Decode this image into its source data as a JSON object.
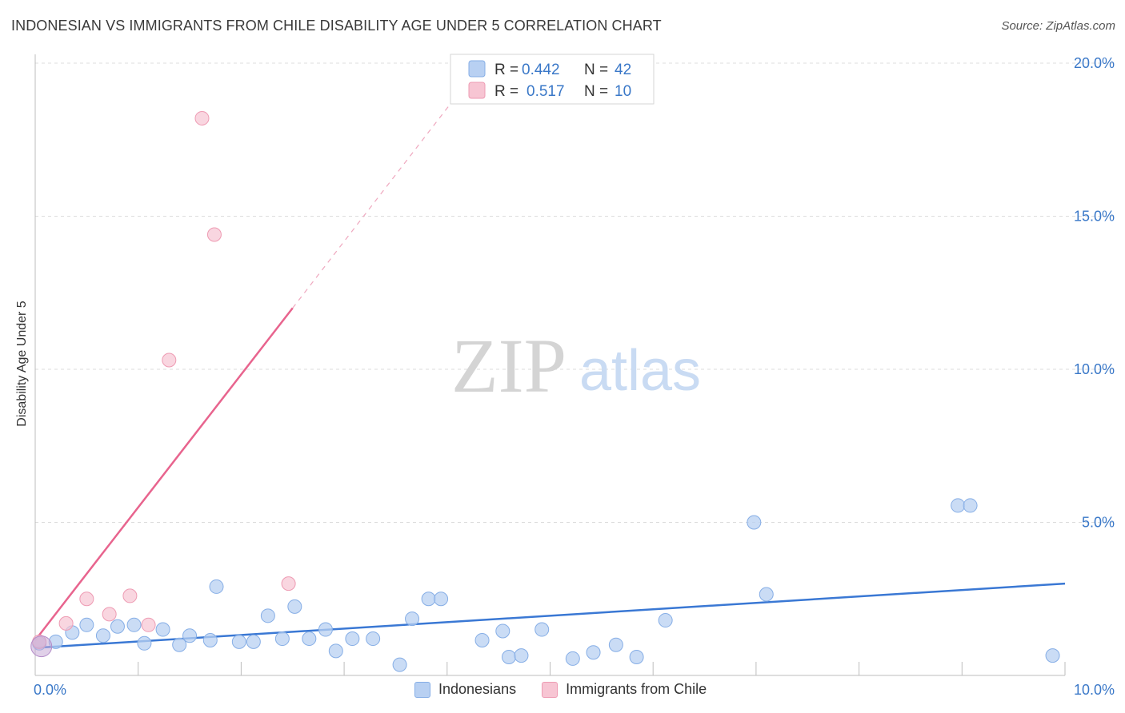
{
  "header": {
    "title": "INDONESIAN VS IMMIGRANTS FROM CHILE DISABILITY AGE UNDER 5 CORRELATION CHART",
    "source": "Source: ZipAtlas.com"
  },
  "watermark": {
    "zip": "ZIP",
    "atlas": "atlas"
  },
  "colors": {
    "blue_fill": "#b8d0f2",
    "blue_stroke": "#86aee6",
    "blue_line": "#3a78d4",
    "pink_fill": "#f7c5d3",
    "pink_stroke": "#ee9bb3",
    "pink_line": "#e8648e",
    "axis_text": "#3a78c8",
    "grid": "#dcdcdc"
  },
  "legend": {
    "rows": [
      {
        "r_label": "R =",
        "r_value": "0.442",
        "n_label": "N =",
        "n_value": "42"
      },
      {
        "r_label": "R =",
        "r_value": "0.517",
        "n_label": "N =",
        "n_value": "10"
      }
    ]
  },
  "bottom_legend": [
    "Indonesians",
    "Immigrants from Chile"
  ],
  "chart_data": {
    "type": "scatter",
    "title": "INDONESIAN VS IMMIGRANTS FROM CHILE DISABILITY AGE UNDER 5 CORRELATION CHART",
    "xlabel": "",
    "ylabel": "Disability Age Under 5",
    "xlim": [
      0,
      10
    ],
    "ylim": [
      0,
      20
    ],
    "x_tick_labels": [
      {
        "value": 0,
        "label": "0.0%"
      },
      {
        "value": 10,
        "label": "10.0%"
      }
    ],
    "y_tick_labels": [
      {
        "value": 5,
        "label": "5.0%"
      },
      {
        "value": 10,
        "label": "10.0%"
      },
      {
        "value": 15,
        "label": "15.0%"
      },
      {
        "value": 20,
        "label": "20.0%"
      }
    ],
    "x_minor_ticks": [
      1,
      2,
      3,
      4,
      5,
      6,
      7,
      8,
      9
    ],
    "series": [
      {
        "name": "Indonesians",
        "color": "blue",
        "r": 0.442,
        "n": 42,
        "points": [
          [
            0.04,
            1.05
          ],
          [
            0.2,
            1.1
          ],
          [
            0.36,
            1.4
          ],
          [
            0.5,
            1.65
          ],
          [
            0.66,
            1.3
          ],
          [
            0.8,
            1.6
          ],
          [
            0.96,
            1.65
          ],
          [
            1.06,
            1.05
          ],
          [
            1.24,
            1.5
          ],
          [
            1.4,
            1.0
          ],
          [
            1.5,
            1.3
          ],
          [
            1.7,
            1.15
          ],
          [
            1.76,
            2.9
          ],
          [
            1.98,
            1.1
          ],
          [
            2.12,
            1.1
          ],
          [
            2.26,
            1.95
          ],
          [
            2.4,
            1.2
          ],
          [
            2.52,
            2.25
          ],
          [
            2.66,
            1.2
          ],
          [
            2.82,
            1.5
          ],
          [
            2.92,
            0.8
          ],
          [
            3.08,
            1.2
          ],
          [
            3.28,
            1.2
          ],
          [
            3.54,
            0.35
          ],
          [
            3.66,
            1.85
          ],
          [
            3.82,
            2.5
          ],
          [
            3.94,
            2.5
          ],
          [
            4.34,
            1.15
          ],
          [
            4.54,
            1.45
          ],
          [
            4.6,
            0.6
          ],
          [
            4.72,
            0.65
          ],
          [
            4.92,
            1.5
          ],
          [
            5.22,
            0.55
          ],
          [
            5.42,
            0.75
          ],
          [
            5.64,
            1.0
          ],
          [
            5.84,
            0.6
          ],
          [
            6.12,
            1.8
          ],
          [
            6.98,
            5.0
          ],
          [
            7.1,
            2.65
          ],
          [
            8.96,
            5.55
          ],
          [
            9.08,
            5.55
          ],
          [
            9.88,
            0.65
          ]
        ],
        "trend": {
          "x": [
            0,
            10
          ],
          "y": [
            0.9,
            3.0
          ]
        }
      },
      {
        "name": "Immigrants from Chile",
        "color": "pink",
        "r": 0.517,
        "n": 10,
        "points": [
          [
            0.04,
            1.1
          ],
          [
            0.3,
            1.7
          ],
          [
            0.5,
            2.5
          ],
          [
            0.72,
            2.0
          ],
          [
            0.92,
            2.6
          ],
          [
            1.1,
            1.65
          ],
          [
            1.3,
            10.3
          ],
          [
            1.62,
            18.2
          ],
          [
            1.74,
            14.4
          ],
          [
            2.46,
            3.0
          ]
        ],
        "trend": {
          "x": [
            0,
            2.5
          ],
          "y": [
            1.15,
            12.0
          ]
        },
        "trend_extended": {
          "x": [
            2.5,
            4.2
          ],
          "y": [
            12.0,
            19.4
          ]
        }
      }
    ]
  }
}
